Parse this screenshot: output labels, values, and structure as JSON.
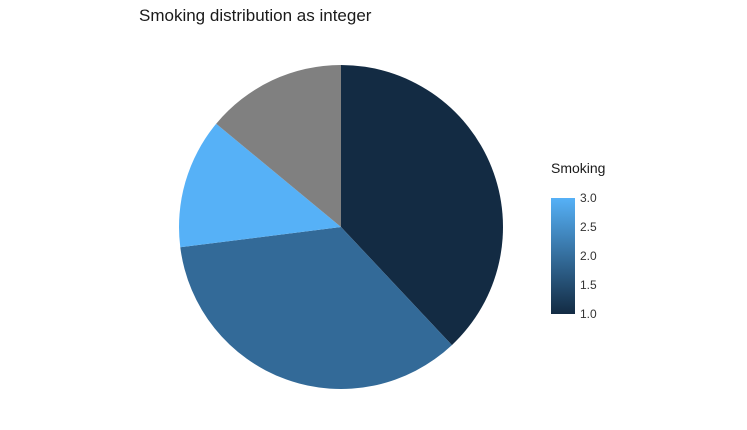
{
  "chart_data": {
    "type": "pie",
    "title": "Smoking distribution as integer",
    "slices": [
      {
        "smoking": 1.0,
        "fraction": 0.38,
        "color": "#132b43"
      },
      {
        "smoking": 2.0,
        "fraction": 0.35,
        "color": "#336a98"
      },
      {
        "smoking": 3.0,
        "fraction": 0.13,
        "color": "#56b1f7"
      },
      {
        "smoking": null,
        "fraction": 0.14,
        "color": "#808080"
      }
    ],
    "legend": {
      "title": "Smoking",
      "ticks": [
        "3.0",
        "2.5",
        "2.0",
        "1.5",
        "1.0"
      ],
      "range": [
        1.0,
        3.0
      ],
      "low_color": "#132b43",
      "high_color": "#56b1f7",
      "placement": "right"
    }
  }
}
